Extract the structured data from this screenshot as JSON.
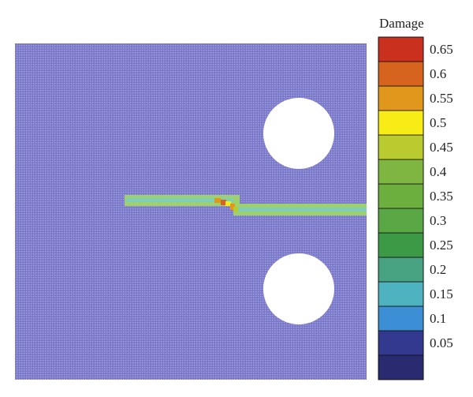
{
  "legend": {
    "title": "Damage",
    "bins": [
      {
        "label": "",
        "color": "#2a2a70"
      },
      {
        "label": "0.05",
        "color": "#33398f"
      },
      {
        "label": "0.1",
        "color": "#3c8fd4"
      },
      {
        "label": "0.15",
        "color": "#4fb3bf"
      },
      {
        "label": "0.2",
        "color": "#48a382"
      },
      {
        "label": "0.25",
        "color": "#3c9a47"
      },
      {
        "label": "0.3",
        "color": "#5aa845"
      },
      {
        "label": "0.35",
        "color": "#6caf3e"
      },
      {
        "label": "0.4",
        "color": "#7fb642"
      },
      {
        "label": "0.45",
        "color": "#b9cb2e"
      },
      {
        "label": "0.5",
        "color": "#f7ec15"
      },
      {
        "label": "0.55",
        "color": "#e1961c"
      },
      {
        "label": "0.6",
        "color": "#d6631e"
      },
      {
        "label": "0.65",
        "color": "#c9301e"
      }
    ]
  },
  "specimen": {
    "background_color": "#7a78c9",
    "mesh_dot_color": "#a5a4e0",
    "hole_color": "#ffffff"
  },
  "crack": {
    "band_colors": [
      "#9fd06e",
      "#7fcfb8",
      "#b9cb2e"
    ],
    "hotspot_colors": [
      "#e1961c",
      "#d6631e",
      "#f7ec15"
    ]
  }
}
